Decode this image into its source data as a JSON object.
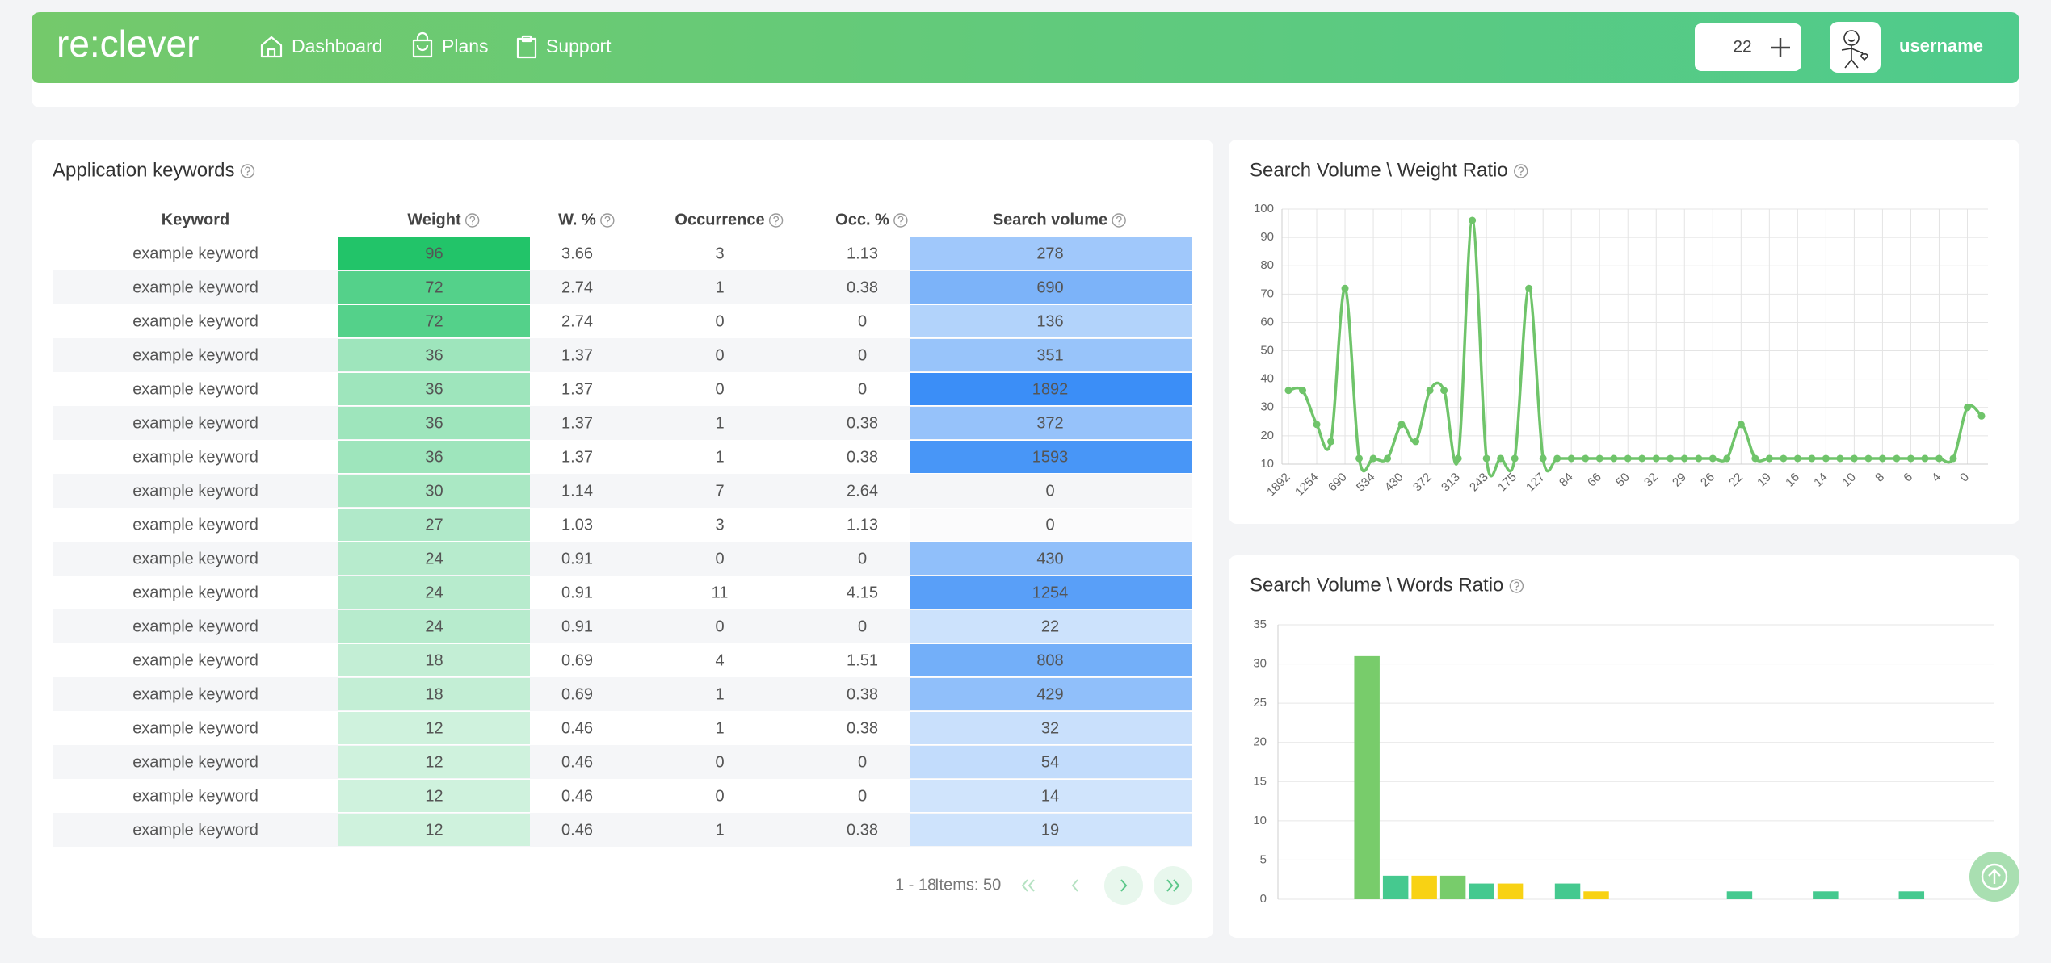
{
  "header": {
    "logo": "re:clever",
    "nav": [
      "Dashboard",
      "Plans",
      "Support"
    ],
    "counter": 22,
    "user": "username"
  },
  "table": {
    "title": "Application keywords",
    "columns": [
      "Keyword",
      "Weight",
      "W. %",
      "Occurrence",
      "Occ. %",
      "Search volume"
    ],
    "rows": [
      [
        "example keyword",
        96,
        3.66,
        3,
        1.13,
        278
      ],
      [
        "example keyword",
        72,
        2.74,
        1,
        0.38,
        690
      ],
      [
        "example keyword",
        72,
        2.74,
        0,
        0,
        136
      ],
      [
        "example keyword",
        36,
        1.37,
        0,
        0,
        351
      ],
      [
        "example keyword",
        36,
        1.37,
        0,
        0,
        1892
      ],
      [
        "example keyword",
        36,
        1.37,
        1,
        0.38,
        372
      ],
      [
        "example keyword",
        36,
        1.37,
        1,
        0.38,
        1593
      ],
      [
        "example keyword",
        30,
        1.14,
        7,
        2.64,
        0
      ],
      [
        "example keyword",
        27,
        1.03,
        3,
        1.13,
        0
      ],
      [
        "example keyword",
        24,
        0.91,
        0,
        0,
        430
      ],
      [
        "example keyword",
        24,
        0.91,
        11,
        4.15,
        1254
      ],
      [
        "example keyword",
        24,
        0.91,
        0,
        0,
        22
      ],
      [
        "example keyword",
        18,
        0.69,
        4,
        1.51,
        808
      ],
      [
        "example keyword",
        18,
        0.69,
        1,
        0.38,
        429
      ],
      [
        "example keyword",
        12,
        0.46,
        1,
        0.38,
        32
      ],
      [
        "example keyword",
        12,
        0.46,
        0,
        0,
        54
      ],
      [
        "example keyword",
        12,
        0.46,
        0,
        0,
        14
      ],
      [
        "example keyword",
        12,
        0.46,
        1,
        0.38,
        19
      ]
    ],
    "pagination": {
      "range": "1 - 18",
      "items": "Items: 50"
    }
  },
  "chart_data": [
    {
      "type": "line",
      "title": "Search Volume \\ Weight Ratio",
      "color": "#6fc46a",
      "grid": true,
      "categories": [
        1892,
        null,
        1254,
        null,
        690,
        null,
        534,
        null,
        430,
        null,
        372,
        null,
        313,
        null,
        243,
        null,
        175,
        null,
        127,
        null,
        84,
        null,
        66,
        null,
        50,
        null,
        32,
        null,
        29,
        null,
        26,
        null,
        22,
        null,
        19,
        null,
        16,
        null,
        14,
        null,
        10,
        null,
        8,
        null,
        6,
        null,
        4,
        null,
        0,
        null
      ],
      "values": [
        36,
        36,
        24,
        18,
        72,
        12,
        12,
        12,
        24,
        18,
        36,
        36,
        12,
        96,
        12,
        12,
        12,
        72,
        12,
        12,
        12,
        12,
        12,
        12,
        12,
        12,
        12,
        12,
        12,
        12,
        12,
        12,
        24,
        12,
        12,
        12,
        12,
        12,
        12,
        12,
        12,
        12,
        12,
        12,
        12,
        12,
        12,
        12,
        30,
        27
      ],
      "ylim": [
        10,
        100
      ],
      "yticks": [
        10,
        20,
        30,
        40,
        50,
        60,
        70,
        80,
        90,
        100
      ]
    },
    {
      "type": "bar",
      "title": "Search Volume \\ Words Ratio",
      "colors": [
        "#78cc6b",
        "#45c98f",
        "#f8d214"
      ],
      "grid": true,
      "categories": [
        null,
        null,
        null,
        null,
        null,
        null,
        null,
        null,
        null,
        null,
        null,
        null,
        null,
        null,
        null,
        null,
        null,
        null,
        null,
        null,
        null,
        null,
        null,
        null,
        null
      ],
      "values": [
        0,
        0,
        0,
        31,
        3,
        3,
        3,
        2,
        2,
        0,
        2,
        1,
        0,
        0,
        0,
        0,
        1,
        0,
        0,
        1,
        0,
        0,
        1,
        0,
        0
      ],
      "ylim": [
        0,
        35
      ],
      "yticks": [
        0,
        5,
        10,
        15,
        20,
        25,
        30,
        35
      ]
    }
  ]
}
